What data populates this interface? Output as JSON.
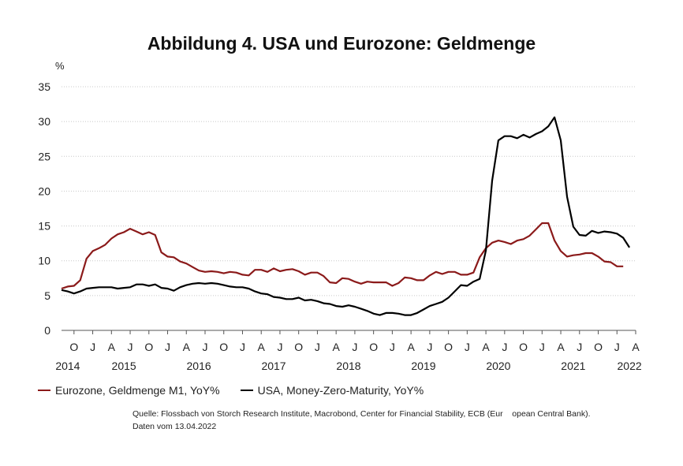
{
  "title": "Abbildung 4. USA und Eurozone: Geldmenge",
  "chart_data": {
    "type": "line",
    "title": "Abbildung 4. USA und Eurozone: Geldmenge",
    "ylabel": "%",
    "xlabel": "",
    "ylim": [
      0,
      35
    ],
    "yticks": [
      0,
      5,
      10,
      15,
      20,
      25,
      30,
      35
    ],
    "xlim": [
      "2014-08",
      "2022-04"
    ],
    "month_ticks": [
      {
        "month": "2014-10",
        "label": "O"
      },
      {
        "month": "2015-01",
        "label": "J"
      },
      {
        "month": "2015-04",
        "label": "A"
      },
      {
        "month": "2015-07",
        "label": "J"
      },
      {
        "month": "2015-10",
        "label": "O"
      },
      {
        "month": "2016-01",
        "label": "J"
      },
      {
        "month": "2016-04",
        "label": "A"
      },
      {
        "month": "2016-07",
        "label": "J"
      },
      {
        "month": "2016-10",
        "label": "O"
      },
      {
        "month": "2017-01",
        "label": "J"
      },
      {
        "month": "2017-04",
        "label": "A"
      },
      {
        "month": "2017-07",
        "label": "J"
      },
      {
        "month": "2017-10",
        "label": "O"
      },
      {
        "month": "2018-01",
        "label": "J"
      },
      {
        "month": "2018-04",
        "label": "A"
      },
      {
        "month": "2018-07",
        "label": "J"
      },
      {
        "month": "2018-10",
        "label": "O"
      },
      {
        "month": "2019-01",
        "label": "J"
      },
      {
        "month": "2019-04",
        "label": "A"
      },
      {
        "month": "2019-07",
        "label": "J"
      },
      {
        "month": "2019-10",
        "label": "O"
      },
      {
        "month": "2020-01",
        "label": "J"
      },
      {
        "month": "2020-04",
        "label": "A"
      },
      {
        "month": "2020-07",
        "label": "J"
      },
      {
        "month": "2020-10",
        "label": "O"
      },
      {
        "month": "2021-01",
        "label": "J"
      },
      {
        "month": "2021-04",
        "label": "A"
      },
      {
        "month": "2021-07",
        "label": "J"
      },
      {
        "month": "2021-10",
        "label": "O"
      },
      {
        "month": "2022-01",
        "label": "J"
      },
      {
        "month": "2022-04",
        "label": "A"
      }
    ],
    "year_labels": [
      {
        "month": "2014-09",
        "label": "2014"
      },
      {
        "month": "2015-06",
        "label": "2015"
      },
      {
        "month": "2016-06",
        "label": "2016"
      },
      {
        "month": "2017-06",
        "label": "2017"
      },
      {
        "month": "2018-06",
        "label": "2018"
      },
      {
        "month": "2019-06",
        "label": "2019"
      },
      {
        "month": "2020-06",
        "label": "2020"
      },
      {
        "month": "2021-06",
        "label": "2021"
      },
      {
        "month": "2022-03",
        "label": "2022"
      }
    ],
    "x_start": "2014-08",
    "grid": true,
    "legend_position": "bottom-left",
    "series": [
      {
        "name": "Eurozone, Geldmenge M1, YoY%",
        "color": "#8b1a1a",
        "values": [
          6.0,
          6.3,
          6.4,
          7.2,
          10.3,
          11.4,
          11.8,
          12.3,
          13.2,
          13.8,
          14.1,
          14.6,
          14.2,
          13.8,
          14.1,
          13.7,
          11.2,
          10.6,
          10.5,
          9.9,
          9.6,
          9.1,
          8.6,
          8.4,
          8.5,
          8.4,
          8.2,
          8.4,
          8.3,
          8.0,
          7.9,
          8.7,
          8.7,
          8.4,
          8.9,
          8.5,
          8.7,
          8.8,
          8.5,
          8.0,
          8.3,
          8.3,
          7.8,
          6.9,
          6.8,
          7.5,
          7.4,
          7.0,
          6.7,
          7.0,
          6.9,
          6.9,
          6.9,
          6.4,
          6.8,
          7.6,
          7.5,
          7.2,
          7.2,
          7.9,
          8.4,
          8.1,
          8.4,
          8.4,
          8.0,
          8.0,
          8.3,
          10.5,
          11.8,
          12.6,
          12.9,
          12.7,
          12.4,
          12.9,
          13.1,
          13.6,
          14.5,
          15.4,
          15.4,
          12.9,
          11.4,
          10.6,
          10.8,
          10.9,
          11.1,
          11.1,
          10.6,
          9.9,
          9.8,
          9.2,
          9.2
        ]
      },
      {
        "name": "USA, Money-Zero-Maturity, YoY%",
        "color": "#000000",
        "values": [
          5.8,
          5.6,
          5.3,
          5.6,
          6.0,
          6.1,
          6.2,
          6.2,
          6.2,
          6.0,
          6.1,
          6.2,
          6.6,
          6.6,
          6.4,
          6.6,
          6.1,
          6.0,
          5.7,
          6.2,
          6.5,
          6.7,
          6.8,
          6.7,
          6.8,
          6.7,
          6.5,
          6.3,
          6.2,
          6.2,
          6.0,
          5.6,
          5.3,
          5.2,
          4.8,
          4.7,
          4.5,
          4.5,
          4.7,
          4.3,
          4.4,
          4.2,
          3.9,
          3.8,
          3.5,
          3.4,
          3.6,
          3.4,
          3.1,
          2.8,
          2.4,
          2.2,
          2.5,
          2.5,
          2.4,
          2.2,
          2.2,
          2.5,
          3.0,
          3.5,
          3.8,
          4.1,
          4.7,
          5.6,
          6.5,
          6.4,
          7.0,
          7.4,
          11.5,
          21.5,
          27.3,
          27.9,
          27.9,
          27.6,
          28.1,
          27.7,
          28.2,
          28.6,
          29.3,
          30.6,
          27.3,
          19.2,
          14.9,
          13.7,
          13.6,
          14.3,
          14.0,
          14.2,
          14.1,
          13.9,
          13.3,
          11.9
        ]
      }
    ]
  },
  "legend": {
    "items": [
      {
        "label": "Eurozone, Geldmenge M1, YoY%",
        "color": "#8b1a1a"
      },
      {
        "label": "USA, Money-Zero-Maturity, YoY%",
        "color": "#000000"
      }
    ]
  },
  "source": {
    "line1": "Quelle: Flossbach von Storch Research Institute, Macrobond, Center for Financial Stability, ECB (Eur    opean Central Bank).",
    "line2": "Daten vom 13.04.2022"
  }
}
